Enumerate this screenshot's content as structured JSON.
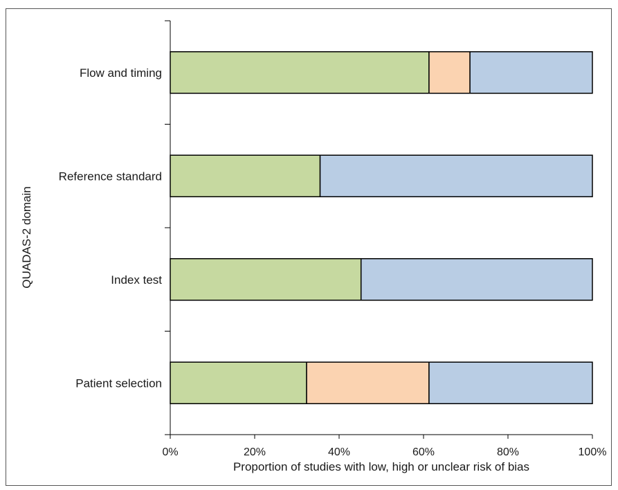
{
  "chart_data": {
    "type": "bar",
    "orientation": "horizontal",
    "stacked": true,
    "categories": [
      "Flow and timing",
      "Reference standard",
      "Index test",
      "Patient selection"
    ],
    "series": [
      {
        "values": [
          61.3,
          35.5,
          45.2,
          32.3
        ],
        "color": "#c6d9a0"
      },
      {
        "values": [
          9.7,
          0,
          0,
          29.0
        ],
        "color": "#fbd3b1"
      },
      {
        "values": [
          29.0,
          64.5,
          54.8,
          38.7
        ],
        "color": "#b9cde4"
      }
    ],
    "xlabel": "Proportion of studies with low, high or unclear risk of bias",
    "ylabel": "QUADAS-2 domain",
    "xlim": [
      0,
      100
    ],
    "xticks": [
      "0%",
      "20%",
      "40%",
      "60%",
      "80%",
      "100%"
    ],
    "grid": false,
    "legend": "none"
  }
}
